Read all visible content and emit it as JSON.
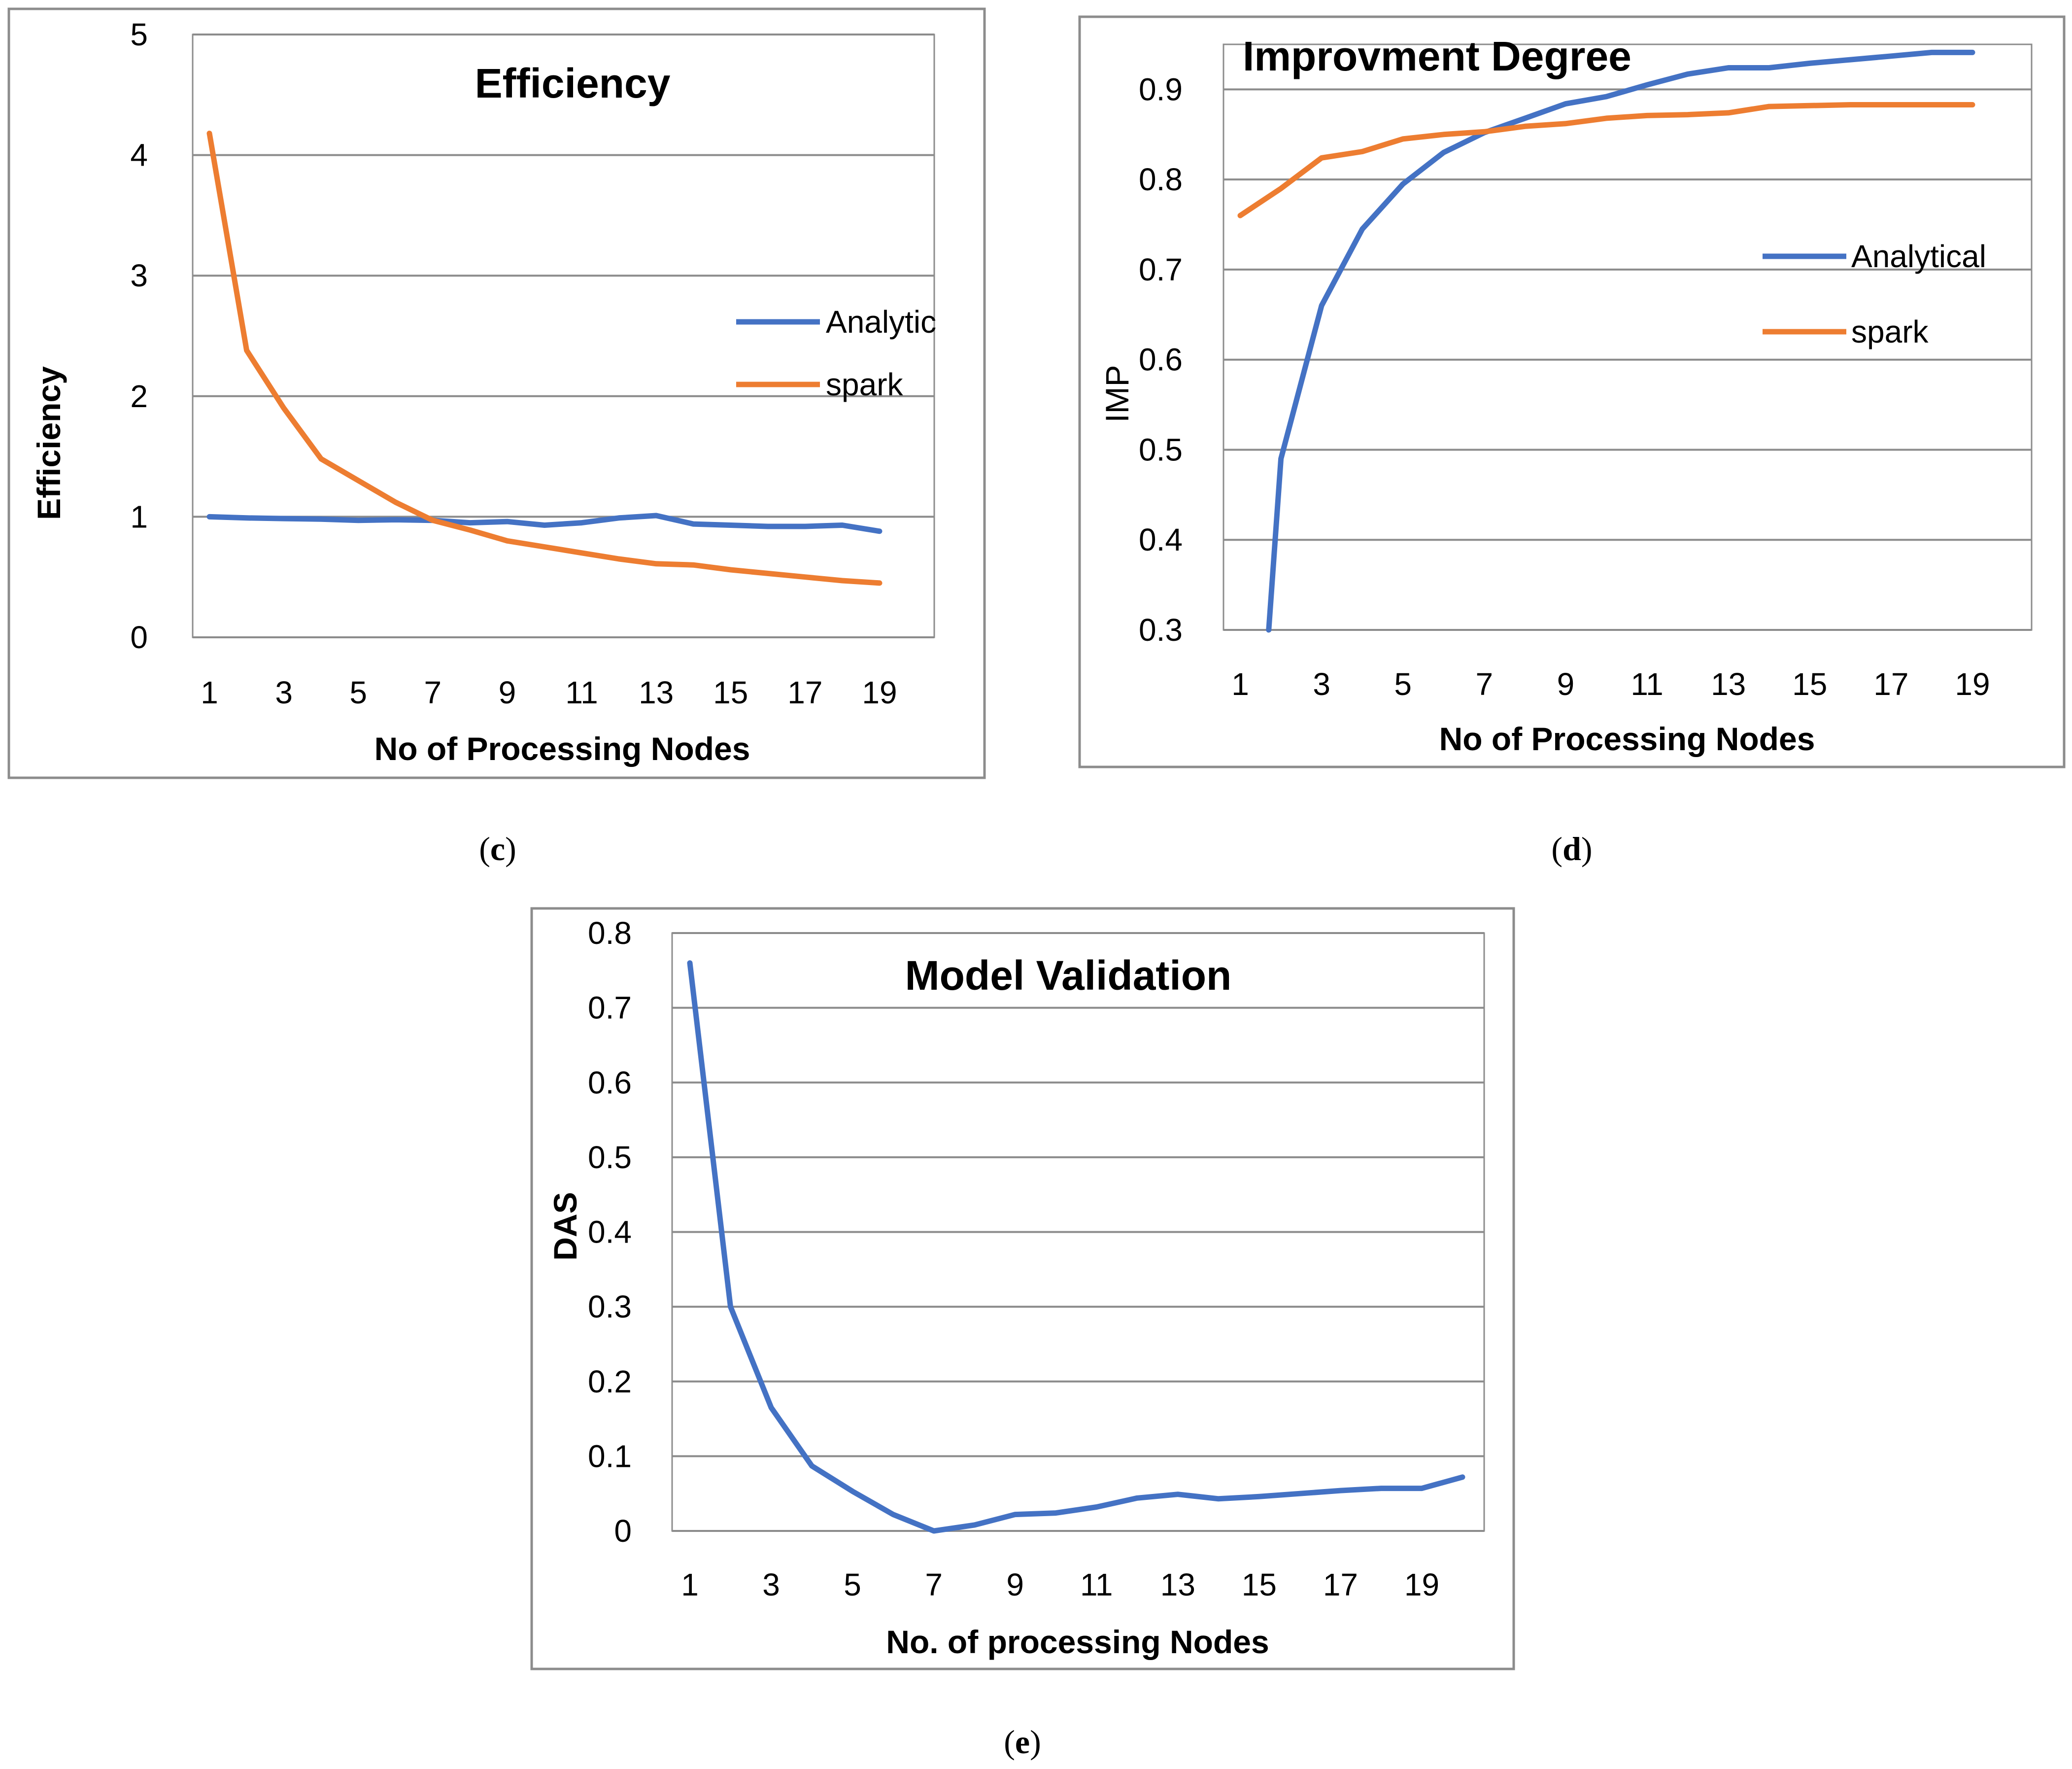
{
  "chart_data": [
    {
      "id": "c",
      "type": "line",
      "title": "Efficiency",
      "xlabel": "No of Processing Nodes",
      "ylabel": "Efficiency",
      "caption": "c",
      "xticks": [
        "1",
        "3",
        "5",
        "7",
        "9",
        "11",
        "13",
        "15",
        "17",
        "19"
      ],
      "yticks": [
        "0",
        "1",
        "2",
        "3",
        "4",
        "5"
      ],
      "xlim": [
        1,
        19
      ],
      "ylim": [
        0,
        5
      ],
      "grid": true,
      "legend_position": "right",
      "series": [
        {
          "name": "Analytic",
          "color": "#4472c4",
          "x": [
            1,
            2,
            3,
            4,
            5,
            6,
            7,
            8,
            9,
            10,
            11,
            12,
            13,
            14,
            15,
            16,
            17,
            18,
            19
          ],
          "y": [
            1.0,
            0.99,
            0.985,
            0.98,
            0.97,
            0.975,
            0.97,
            0.95,
            0.96,
            0.93,
            0.95,
            0.99,
            1.01,
            0.94,
            0.93,
            0.92,
            0.92,
            0.93,
            0.88
          ]
        },
        {
          "name": "spark",
          "color": "#ed7d31",
          "x": [
            1,
            2,
            3,
            4,
            5,
            6,
            7,
            8,
            9,
            10,
            11,
            12,
            13,
            14,
            15,
            16,
            17,
            18,
            19
          ],
          "y": [
            4.18,
            2.38,
            1.9,
            1.48,
            1.3,
            1.12,
            0.97,
            0.89,
            0.8,
            0.75,
            0.7,
            0.65,
            0.61,
            0.6,
            0.56,
            0.53,
            0.5,
            0.47,
            0.45
          ]
        }
      ]
    },
    {
      "id": "d",
      "type": "line",
      "title": "Improvment Degree",
      "xlabel": "No of Processing Nodes",
      "ylabel": "IMP",
      "caption": "d",
      "xticks": [
        "1",
        "3",
        "5",
        "7",
        "9",
        "11",
        "13",
        "15",
        "17",
        "19"
      ],
      "yticks": [
        "0.3",
        "0.4",
        "0.5",
        "0.6",
        "0.7",
        "0.8",
        "0.9"
      ],
      "xlim": [
        1,
        19
      ],
      "ylim": [
        0.3,
        0.95
      ],
      "grid": true,
      "legend_position": "right",
      "series": [
        {
          "name": "Analytical",
          "color": "#4472c4",
          "x": [
            1.7,
            2,
            3,
            4,
            5,
            6,
            7,
            8,
            9,
            10,
            11,
            12,
            13,
            14,
            15,
            16,
            17,
            18,
            19
          ],
          "y": [
            0.3,
            0.49,
            0.66,
            0.745,
            0.795,
            0.83,
            0.852,
            0.868,
            0.884,
            0.892,
            0.905,
            0.917,
            0.924,
            0.924,
            0.929,
            0.933,
            0.937,
            0.941,
            0.941
          ]
        },
        {
          "name": "spark",
          "color": "#ed7d31",
          "x": [
            1,
            2,
            3,
            4,
            5,
            6,
            7,
            8,
            9,
            10,
            11,
            12,
            13,
            14,
            15,
            16,
            17,
            18,
            19
          ],
          "y": [
            0.76,
            0.79,
            0.824,
            0.831,
            0.845,
            0.85,
            0.853,
            0.859,
            0.862,
            0.868,
            0.871,
            0.872,
            0.874,
            0.881,
            0.882,
            0.883,
            0.883,
            0.883,
            0.883
          ]
        }
      ]
    },
    {
      "id": "e",
      "type": "line",
      "title": "Model Validation",
      "xlabel": "No. of processing Nodes",
      "ylabel": "DAS",
      "caption": "e",
      "xticks": [
        "1",
        "3",
        "5",
        "7",
        "9",
        "11",
        "13",
        "15",
        "17",
        "19"
      ],
      "yticks": [
        "0",
        "0.1",
        "0.2",
        "0.3",
        "0.4",
        "0.5",
        "0.6",
        "0.7",
        "0.8"
      ],
      "xlim": [
        1,
        20
      ],
      "ylim": [
        0,
        0.8
      ],
      "grid": true,
      "legend_position": "none",
      "series": [
        {
          "name": "DAS",
          "color": "#4472c4",
          "x": [
            1,
            2,
            3,
            4,
            5,
            6,
            7,
            8,
            9,
            10,
            11,
            12,
            13,
            14,
            15,
            16,
            17,
            18,
            19,
            20
          ],
          "y": [
            0.76,
            0.3,
            0.165,
            0.087,
            0.053,
            0.022,
            0.0,
            0.008,
            0.022,
            0.024,
            0.032,
            0.044,
            0.049,
            0.043,
            0.046,
            0.05,
            0.054,
            0.057,
            0.057,
            0.072
          ]
        }
      ]
    }
  ]
}
